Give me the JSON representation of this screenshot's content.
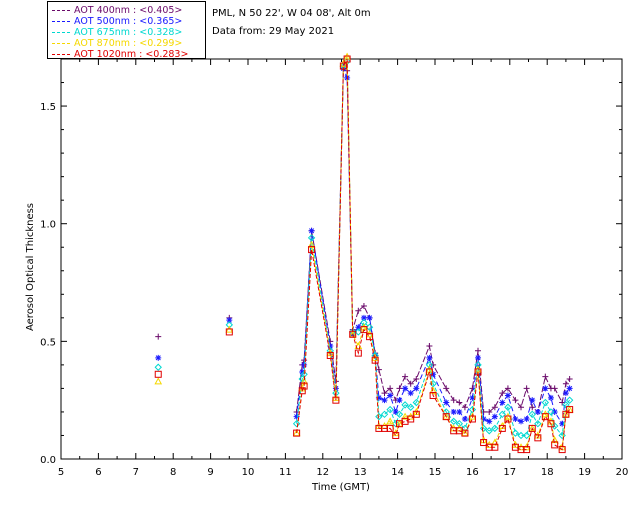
{
  "header": {
    "site": "PML, N 50 22', W 04 08', Alt 0m",
    "date": "Data from: 29 May 2021"
  },
  "legend": [
    {
      "label": "AOT  400nm : <0.405>",
      "color": "#6a0a6a"
    },
    {
      "label": "AOT  500nm : <0.365>",
      "color": "#1a1aff"
    },
    {
      "label": "AOT  675nm : <0.328>",
      "color": "#00d8d0"
    },
    {
      "label": "AOT  870nm : <0.299>",
      "color": "#f5d800"
    },
    {
      "label": "AOT 1020nm : <0.283>",
      "color": "#e00000"
    }
  ],
  "chart_data": {
    "type": "line",
    "xlabel": "Time (GMT)",
    "ylabel": "Aerosol Optical Thickness",
    "xlim": [
      5,
      20
    ],
    "ylim": [
      0,
      1.7
    ],
    "xticks": [
      "5",
      "6",
      "7",
      "8",
      "9",
      "10",
      "11",
      "12",
      "13",
      "14",
      "15",
      "16",
      "17",
      "18",
      "19",
      "20"
    ],
    "yticks": [
      "0.0",
      "0.5",
      "1.0",
      "1.5"
    ],
    "x": [
      7.6,
      9.5,
      11.3,
      11.45,
      11.5,
      11.7,
      12.2,
      12.35,
      12.55,
      12.65,
      12.8,
      12.95,
      13.1,
      13.25,
      13.4,
      13.5,
      13.65,
      13.8,
      13.95,
      14.05,
      14.2,
      14.35,
      14.5,
      14.85,
      14.95,
      15.3,
      15.5,
      15.65,
      15.8,
      16.0,
      16.15,
      16.3,
      16.45,
      16.6,
      16.8,
      16.95,
      17.15,
      17.3,
      17.45,
      17.6,
      17.75,
      17.95,
      18.1,
      18.2,
      18.4,
      18.5,
      18.6
    ],
    "series": [
      {
        "name": "AOT  400nm",
        "color": "#6a0a6a",
        "marker": "plus",
        "values": [
          0.52,
          0.6,
          0.2,
          0.4,
          0.42,
          0.97,
          0.5,
          0.33,
          1.67,
          1.65,
          0.55,
          0.63,
          0.65,
          0.6,
          0.45,
          0.38,
          0.28,
          0.3,
          0.25,
          0.3,
          0.35,
          0.32,
          0.34,
          0.48,
          0.4,
          0.3,
          0.25,
          0.24,
          0.22,
          0.3,
          0.46,
          0.2,
          0.2,
          0.22,
          0.28,
          0.3,
          0.25,
          0.22,
          0.3,
          0.22,
          0.2,
          0.35,
          0.3,
          0.3,
          0.24,
          0.32,
          0.34
        ]
      },
      {
        "name": "AOT  500nm",
        "color": "#1a1aff",
        "marker": "star",
        "values": [
          0.43,
          0.59,
          0.18,
          0.37,
          0.4,
          0.97,
          0.48,
          0.3,
          1.66,
          1.62,
          0.53,
          0.56,
          0.6,
          0.6,
          0.44,
          0.26,
          0.25,
          0.27,
          0.2,
          0.25,
          0.3,
          0.28,
          0.3,
          0.43,
          0.36,
          0.24,
          0.2,
          0.2,
          0.17,
          0.26,
          0.43,
          0.17,
          0.16,
          0.18,
          0.24,
          0.27,
          0.17,
          0.16,
          0.17,
          0.25,
          0.2,
          0.3,
          0.26,
          0.2,
          0.15,
          0.28,
          0.3
        ]
      },
      {
        "name": "AOT  675nm",
        "color": "#00d8d0",
        "marker": "diamond",
        "values": [
          0.39,
          0.57,
          0.15,
          0.34,
          0.36,
          0.94,
          0.46,
          0.28,
          1.67,
          1.69,
          0.54,
          0.54,
          0.58,
          0.56,
          0.44,
          0.18,
          0.19,
          0.21,
          0.15,
          0.19,
          0.23,
          0.22,
          0.24,
          0.4,
          0.32,
          0.2,
          0.16,
          0.15,
          0.13,
          0.21,
          0.4,
          0.13,
          0.12,
          0.13,
          0.19,
          0.22,
          0.11,
          0.1,
          0.1,
          0.19,
          0.15,
          0.24,
          0.2,
          0.14,
          0.1,
          0.23,
          0.25
        ]
      },
      {
        "name": "AOT  870nm",
        "color": "#f5d800",
        "marker": "triangle",
        "values": [
          0.33,
          0.55,
          0.11,
          0.3,
          0.33,
          0.91,
          0.45,
          0.26,
          1.68,
          1.71,
          0.53,
          0.48,
          0.56,
          0.53,
          0.43,
          0.14,
          0.14,
          0.16,
          0.11,
          0.15,
          0.18,
          0.18,
          0.2,
          0.38,
          0.29,
          0.18,
          0.13,
          0.13,
          0.11,
          0.18,
          0.38,
          0.08,
          0.06,
          0.07,
          0.14,
          0.18,
          0.06,
          0.05,
          0.05,
          0.13,
          0.1,
          0.19,
          0.16,
          0.08,
          0.05,
          0.19,
          0.21
        ]
      },
      {
        "name": "AOT 1020nm",
        "color": "#e00000",
        "marker": "square",
        "values": [
          0.36,
          0.54,
          0.11,
          0.29,
          0.31,
          0.89,
          0.44,
          0.25,
          1.67,
          1.7,
          0.53,
          0.45,
          0.55,
          0.52,
          0.42,
          0.13,
          0.13,
          0.13,
          0.1,
          0.15,
          0.16,
          0.17,
          0.19,
          0.37,
          0.27,
          0.18,
          0.12,
          0.12,
          0.11,
          0.17,
          0.37,
          0.07,
          0.05,
          0.05,
          0.13,
          0.17,
          0.05,
          0.04,
          0.04,
          0.13,
          0.09,
          0.18,
          0.15,
          0.06,
          0.04,
          0.19,
          0.21
        ]
      }
    ]
  }
}
